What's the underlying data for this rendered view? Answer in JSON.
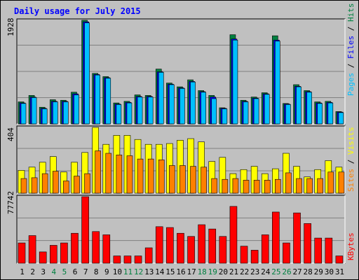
{
  "title": "Daily usage for July 2015",
  "colors": {
    "background": "#c0c0c0",
    "plot_bg": "#c0c0c0",
    "title": "#0000ff",
    "gridline": "#808080",
    "hits": "#008040",
    "files": "#0000ff",
    "pages": "#00c0ff",
    "visits": "#ffff00",
    "sites": "#ff8000",
    "kbytes": "#ff0000",
    "weekend_day": "#008040",
    "weekday_day": "#000000"
  },
  "days": [
    "1",
    "2",
    "3",
    "4",
    "5",
    "6",
    "7",
    "8",
    "9",
    "10",
    "11",
    "12",
    "13",
    "14",
    "15",
    "16",
    "17",
    "18",
    "19",
    "20",
    "21",
    "22",
    "23",
    "24",
    "25",
    "26",
    "27",
    "28",
    "29",
    "30",
    "31"
  ],
  "weekend_days": [
    "4",
    "5",
    "11",
    "12",
    "18",
    "19",
    "25",
    "26"
  ],
  "legend": {
    "pages": "Pages",
    "files": "Files",
    "hits": "Hits",
    "slash": " / ",
    "sites": "Sites",
    "visits": "Visits",
    "kbytes": "KBytes"
  },
  "chart_data": [
    {
      "type": "bar",
      "name": "hits-files-pages",
      "ymax_label": "1928",
      "ylim": [
        0,
        1928
      ],
      "categories": [
        "1",
        "2",
        "3",
        "4",
        "5",
        "6",
        "7",
        "8",
        "9",
        "10",
        "11",
        "12",
        "13",
        "14",
        "15",
        "16",
        "17",
        "18",
        "19",
        "20",
        "21",
        "22",
        "23",
        "24",
        "25",
        "26",
        "27",
        "28",
        "29",
        "30",
        "31"
      ],
      "series": [
        {
          "name": "Hits",
          "values": [
            410,
            530,
            310,
            450,
            440,
            590,
            1928,
            940,
            880,
            390,
            420,
            540,
            530,
            1020,
            760,
            690,
            820,
            620,
            530,
            300,
            1660,
            440,
            500,
            580,
            1640,
            380,
            730,
            620,
            410,
            420,
            230
          ]
        },
        {
          "name": "Files",
          "values": [
            390,
            500,
            290,
            420,
            420,
            560,
            1900,
            920,
            860,
            370,
            400,
            510,
            510,
            970,
            740,
            670,
            790,
            600,
            500,
            290,
            1580,
            420,
            480,
            560,
            1560,
            370,
            700,
            600,
            390,
            400,
            220
          ]
        },
        {
          "name": "Pages",
          "values": [
            380,
            490,
            280,
            410,
            410,
            540,
            1880,
            910,
            850,
            360,
            390,
            500,
            500,
            960,
            730,
            660,
            780,
            590,
            470,
            280,
            1560,
            410,
            470,
            550,
            1540,
            360,
            690,
            590,
            380,
            390,
            210
          ]
        }
      ]
    },
    {
      "type": "bar",
      "name": "visits-sites",
      "ymax_label": "404",
      "ylim": [
        0,
        404
      ],
      "categories": [
        "1",
        "2",
        "3",
        "4",
        "5",
        "6",
        "7",
        "8",
        "9",
        "10",
        "11",
        "12",
        "13",
        "14",
        "15",
        "16",
        "17",
        "18",
        "19",
        "20",
        "21",
        "22",
        "23",
        "24",
        "25",
        "26",
        "27",
        "28",
        "29",
        "30",
        "31"
      ],
      "series": [
        {
          "name": "Visits",
          "values": [
            140,
            160,
            190,
            225,
            130,
            190,
            250,
            404,
            300,
            355,
            355,
            330,
            300,
            300,
            305,
            325,
            335,
            315,
            195,
            220,
            120,
            145,
            165,
            120,
            150,
            245,
            165,
            100,
            145,
            200,
            160
          ]
        },
        {
          "name": "Sites",
          "values": [
            90,
            95,
            120,
            135,
            75,
            105,
            120,
            260,
            245,
            235,
            230,
            210,
            210,
            205,
            170,
            170,
            165,
            160,
            90,
            85,
            90,
            80,
            80,
            80,
            85,
            125,
            90,
            90,
            90,
            130,
            130
          ]
        }
      ]
    },
    {
      "type": "bar",
      "name": "kbytes",
      "ymax_label": "77742",
      "ylim": [
        0,
        77742
      ],
      "categories": [
        "1",
        "2",
        "3",
        "4",
        "5",
        "6",
        "7",
        "8",
        "9",
        "10",
        "11",
        "12",
        "13",
        "14",
        "15",
        "16",
        "17",
        "18",
        "19",
        "20",
        "21",
        "22",
        "23",
        "24",
        "25",
        "26",
        "27",
        "28",
        "29",
        "30",
        "31"
      ],
      "series": [
        {
          "name": "KBytes",
          "values": [
            23700,
            32300,
            13200,
            20900,
            23700,
            35000,
            77742,
            37000,
            33200,
            8500,
            8500,
            8500,
            18000,
            42700,
            41700,
            35000,
            31300,
            45000,
            40000,
            31300,
            66400,
            19900,
            15200,
            33200,
            59800,
            23700,
            58800,
            46400,
            29400,
            29400,
            8500
          ]
        }
      ]
    }
  ]
}
